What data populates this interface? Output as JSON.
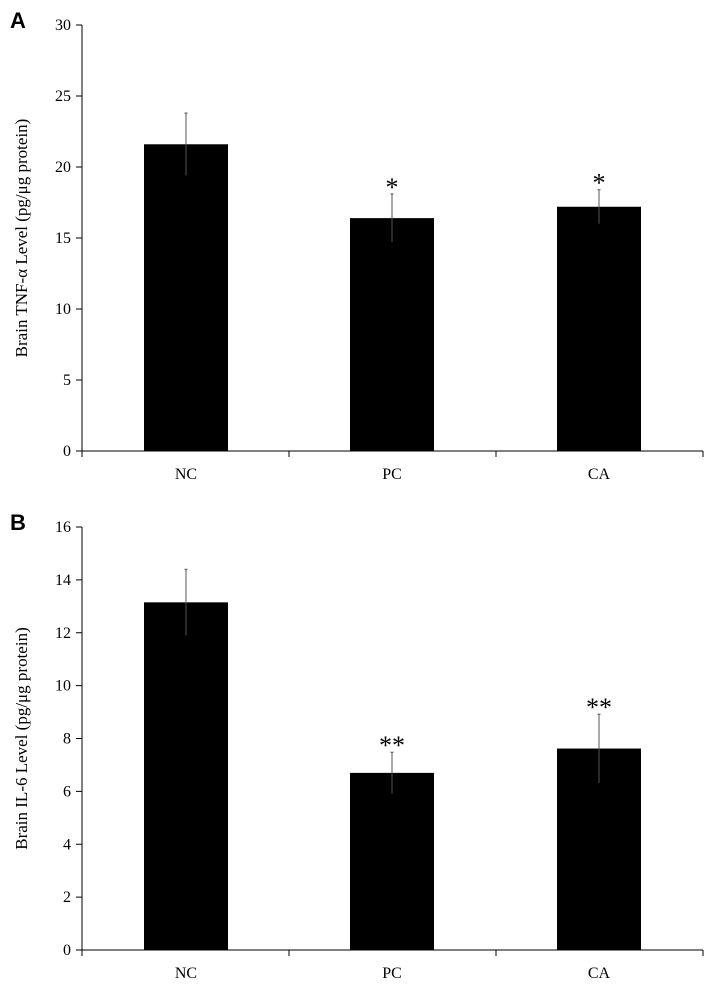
{
  "chart_data": [
    {
      "type": "bar",
      "panel_label": "A",
      "categories": [
        "NC",
        "PC",
        "CA"
      ],
      "values": [
        21.6,
        16.4,
        17.2
      ],
      "error": [
        2.2,
        1.7,
        1.2
      ],
      "significance": [
        "",
        "*",
        "*"
      ],
      "ylabel": "Brain TNF-α Level (pg/μg protein)",
      "xlabel": "",
      "ylim": [
        0,
        30
      ],
      "yticks": [
        0,
        5,
        10,
        15,
        20,
        25,
        30
      ],
      "bar_color": "#000000",
      "grid": false
    },
    {
      "type": "bar",
      "panel_label": "B",
      "categories": [
        "NC",
        "PC",
        "CA"
      ],
      "values": [
        13.15,
        6.7,
        7.62
      ],
      "error": [
        1.25,
        0.78,
        1.3
      ],
      "significance": [
        "",
        "**",
        "**"
      ],
      "ylabel": "Brain IL-6 Level (pg/μg protein)",
      "xlabel": "",
      "ylim": [
        0,
        16
      ],
      "yticks": [
        0,
        2,
        4,
        6,
        8,
        10,
        12,
        14,
        16
      ],
      "bar_color": "#000000",
      "grid": false
    }
  ]
}
